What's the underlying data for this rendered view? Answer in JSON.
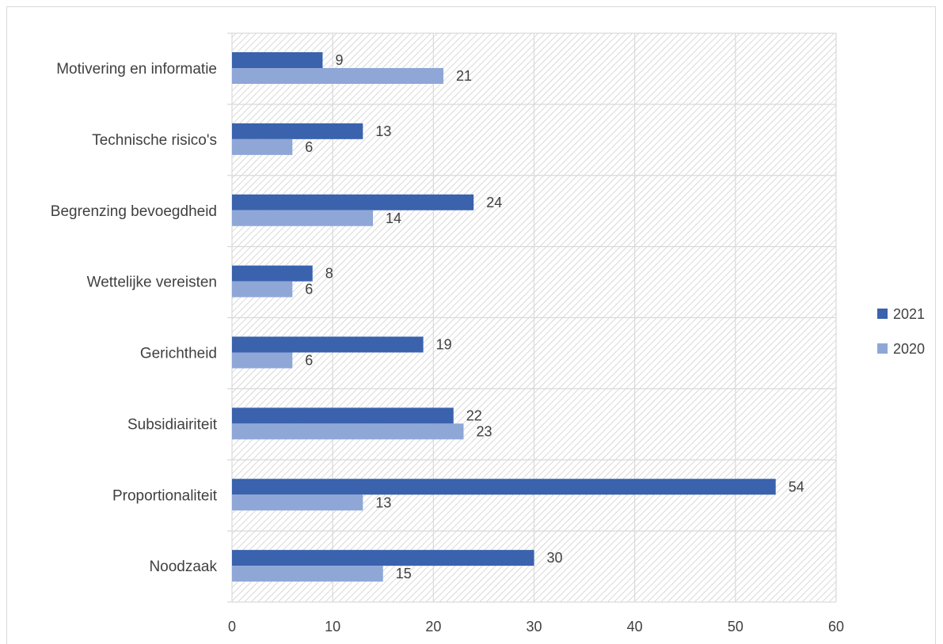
{
  "chart_data": {
    "type": "bar",
    "orientation": "horizontal",
    "categories": [
      "Motivering en informatie",
      "Technische risico's",
      "Begrenzing bevoegdheid",
      "Wettelijke vereisten",
      "Gerichtheid",
      "Subsidiairiteit",
      "Proportionaliteit",
      "Noodzaak"
    ],
    "series": [
      {
        "name": "2021",
        "values": [
          9,
          13,
          24,
          8,
          19,
          22,
          54,
          30
        ],
        "color": "#3a62ad"
      },
      {
        "name": "2020",
        "values": [
          21,
          6,
          14,
          6,
          6,
          23,
          13,
          15
        ],
        "color": "#8fa7d7"
      }
    ],
    "xlim": [
      0,
      60
    ],
    "x_ticks": [
      0,
      10,
      20,
      30,
      40,
      50,
      60
    ],
    "legend_position": "right",
    "grid": true,
    "data_labels": true
  }
}
